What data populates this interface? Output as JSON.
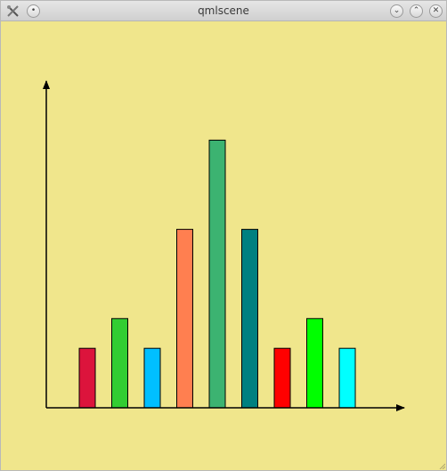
{
  "window": {
    "title": "qmlscene",
    "background_color": "#f0e68c",
    "icons": {
      "app": "tools-icon",
      "menu": "window-menu-icon",
      "minimize": "chevron-down-icon",
      "maximize": "chevron-up-icon",
      "close": "close-icon"
    }
  },
  "chart_data": {
    "type": "bar",
    "title": "",
    "xlabel": "",
    "ylabel": "",
    "ylim": [
      0,
      9
    ],
    "grid": false,
    "values": [
      2,
      3,
      2,
      6,
      9,
      6,
      2,
      3,
      2
    ],
    "colors": [
      "#dc143c",
      "#32cd32",
      "#00bfff",
      "#ff7f50",
      "#3cb371",
      "#008080",
      "#ff0000",
      "#00ff00",
      "#00ffff"
    ],
    "axis_color": "#000000",
    "bar_stroke": "#000000"
  }
}
